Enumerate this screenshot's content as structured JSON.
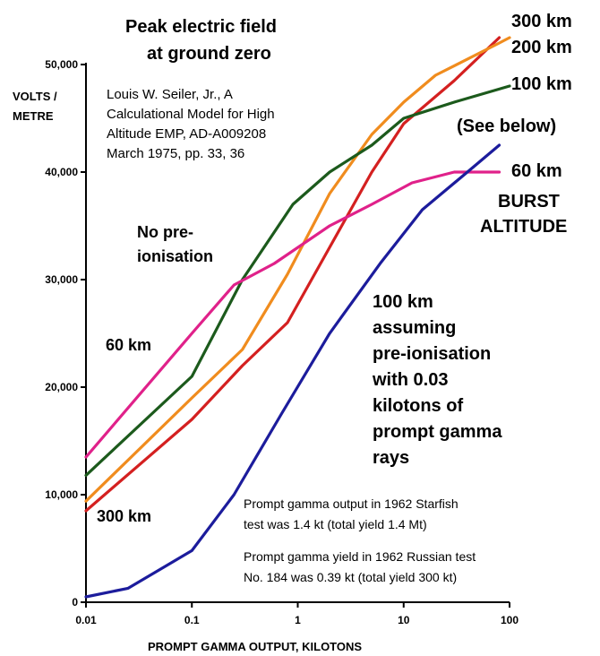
{
  "chart_data": {
    "type": "line",
    "title_lines": [
      "Peak electric field",
      "at ground zero"
    ],
    "citation_lines": [
      "Louis W. Seiler, Jr., A",
      "Calculational Model for High",
      "Altitude EMP, AD-A009208",
      "March 1975, pp. 33, 36"
    ],
    "ylabel_lines": [
      "VOLTS /",
      "METRE"
    ],
    "xlabel": "PROMPT GAMMA OUTPUT, KILOTONS",
    "x_scale": "log",
    "xlim": [
      0.01,
      100
    ],
    "ylim": [
      0,
      50000
    ],
    "x_ticks": [
      {
        "value": 0.01,
        "label": "0.01"
      },
      {
        "value": 0.1,
        "label": "0.1"
      },
      {
        "value": 1,
        "label": "1"
      },
      {
        "value": 10,
        "label": "10"
      },
      {
        "value": 100,
        "label": "100"
      }
    ],
    "y_ticks": [
      {
        "value": 0,
        "label": "0"
      },
      {
        "value": 10000,
        "label": "10,000"
      },
      {
        "value": 20000,
        "label": "20,000"
      },
      {
        "value": 30000,
        "label": "30,000"
      },
      {
        "value": 40000,
        "label": "40,000"
      },
      {
        "value": 50000,
        "label": "50,000"
      }
    ],
    "grid": false,
    "series": [
      {
        "name": "300 km",
        "color": "#d42020",
        "x": [
          0.01,
          0.1,
          0.3,
          0.8,
          2,
          5,
          10,
          30,
          80
        ],
        "y": [
          8500,
          17000,
          22000,
          26000,
          33000,
          40000,
          44500,
          48500,
          52500
        ]
      },
      {
        "name": "200 km",
        "color": "#f08c1e",
        "x": [
          0.01,
          0.1,
          0.3,
          0.8,
          2,
          5,
          10,
          20,
          80,
          100
        ],
        "y": [
          9400,
          19000,
          23500,
          30500,
          38000,
          43500,
          46500,
          49000,
          52000,
          52500
        ]
      },
      {
        "name": "100 km",
        "color": "#1c5a1c",
        "x": [
          0.01,
          0.1,
          0.3,
          0.9,
          2,
          5,
          10,
          30,
          100
        ],
        "y": [
          11800,
          21000,
          30000,
          37000,
          40000,
          42500,
          45000,
          46500,
          48000
        ]
      },
      {
        "name": "60 km",
        "color": "#e0218a",
        "x": [
          0.01,
          0.1,
          0.25,
          0.6,
          2,
          5,
          12,
          30,
          80
        ],
        "y": [
          13500,
          25000,
          29500,
          31500,
          35000,
          37000,
          39000,
          40000,
          40000
        ]
      },
      {
        "name": "100 km (See below)",
        "color": "#1c1c9c",
        "x": [
          0.01,
          0.025,
          0.1,
          0.25,
          0.7,
          2,
          6,
          15,
          40,
          80
        ],
        "y": [
          500,
          1300,
          4800,
          10000,
          17500,
          25000,
          31500,
          36500,
          40000,
          42500
        ]
      }
    ],
    "annotations": {
      "lbl_300_top": "300 km",
      "lbl_200_top": "200 km",
      "lbl_100_top": "100 km",
      "see_below": "(See below)",
      "lbl_60_right": "60 km",
      "burst_altitude_lines": [
        "BURST",
        "ALTITUDE"
      ],
      "no_preion_lines": [
        "No pre-",
        "ionisation"
      ],
      "lbl_60_left": "60 km",
      "lbl_300_left": "300 km",
      "preion_lines": [
        "100 km",
        "assuming",
        "pre-ionisation",
        "with 0.03",
        "kilotons of",
        "prompt gamma",
        "rays"
      ],
      "starfish_lines": [
        "Prompt gamma output in 1962 Starfish",
        "test was 1.4 kt (total yield 1.4 Mt)"
      ],
      "russian_lines": [
        "Prompt gamma yield in 1962 Russian test",
        "No. 184 was 0.39 kt (total yield 300 kt)"
      ]
    }
  }
}
